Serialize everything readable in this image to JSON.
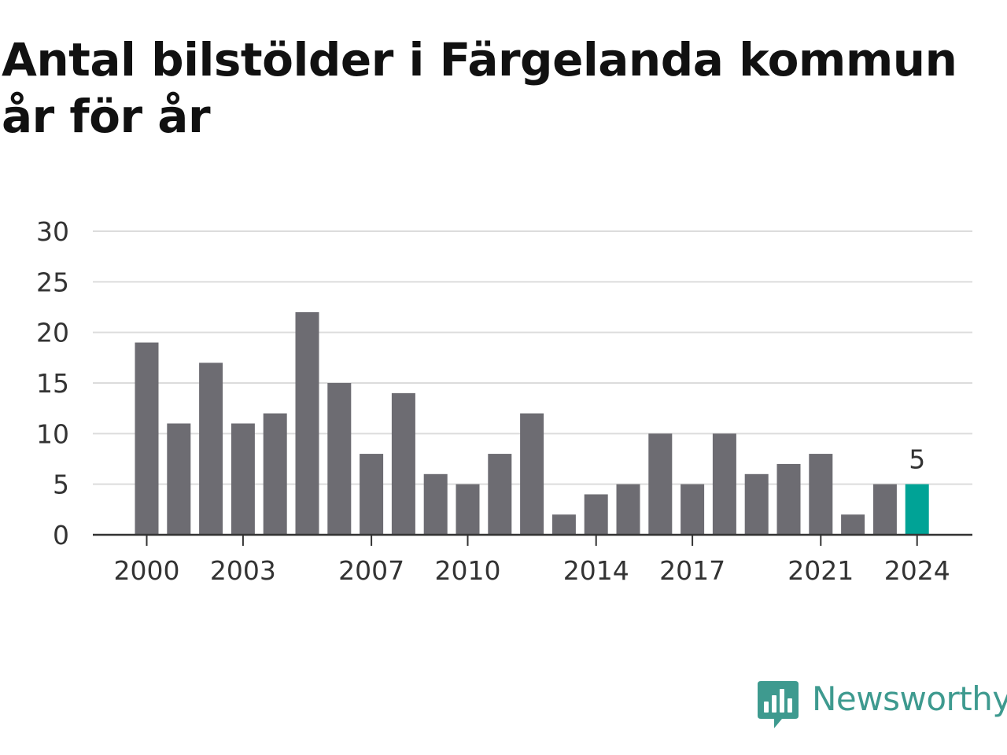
{
  "title": "Antal bilstölder i Färgelanda kommun år för år",
  "brand": {
    "name": "Newsworthy",
    "logo_icon": "newsworthy-bar-chart-logo-icon",
    "color": "#3e9a8f"
  },
  "colors": {
    "bar": "#6d6c72",
    "highlight": "#00a396",
    "grid": "#dcdcdc",
    "axis": "#333333"
  },
  "chart_data": {
    "type": "bar",
    "title": "Antal bilstölder i Färgelanda kommun år för år",
    "xlabel": "",
    "ylabel": "",
    "categories": [
      2000,
      2001,
      2002,
      2003,
      2004,
      2005,
      2006,
      2007,
      2008,
      2009,
      2010,
      2011,
      2012,
      2013,
      2014,
      2015,
      2016,
      2017,
      2018,
      2019,
      2020,
      2021,
      2022,
      2023,
      2024
    ],
    "values": [
      19,
      11,
      17,
      11,
      12,
      22,
      15,
      8,
      14,
      6,
      5,
      8,
      12,
      2,
      4,
      5,
      10,
      5,
      10,
      6,
      7,
      8,
      2,
      5,
      5
    ],
    "ylim": [
      0,
      30
    ],
    "yticks": [
      0,
      5,
      10,
      15,
      20,
      25,
      30
    ],
    "xtick_labels": [
      2000,
      2003,
      2007,
      2010,
      2014,
      2017,
      2021,
      2024
    ],
    "highlight": {
      "category": 2024,
      "label": "5"
    },
    "grid": true,
    "legend": "none"
  }
}
